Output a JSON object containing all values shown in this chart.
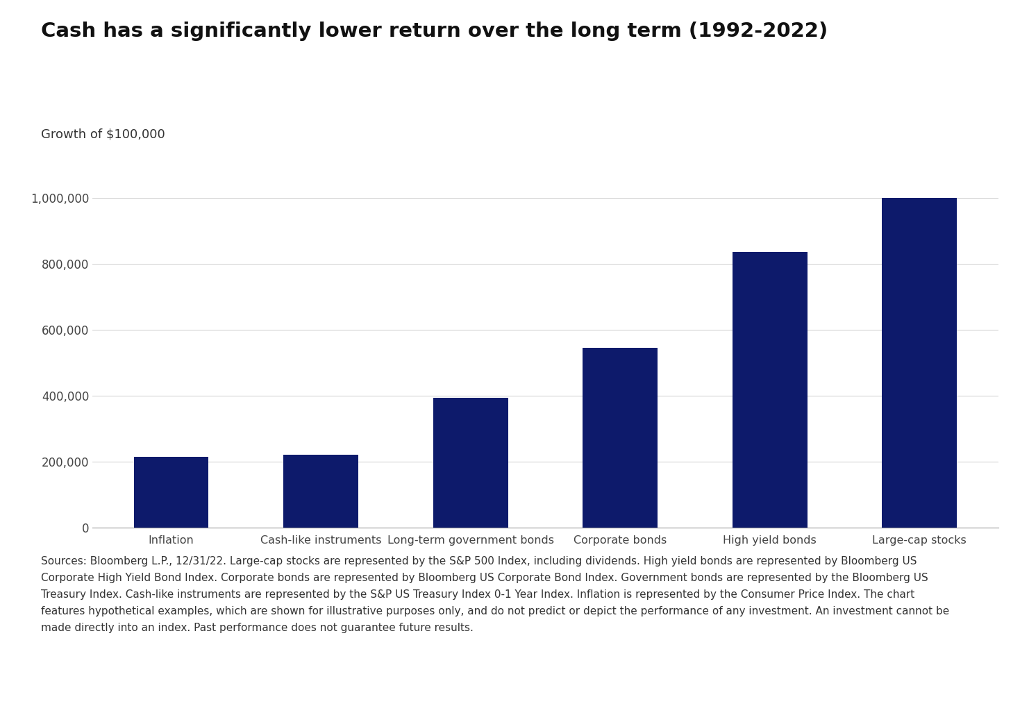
{
  "title": "Cash has a significantly lower return over the long term (1992-2022)",
  "ylabel": "Growth of $100,000",
  "categories": [
    "Inflation",
    "Cash-like instruments",
    "Long-term government bonds",
    "Corporate bonds",
    "High yield bonds",
    "Large-cap stocks"
  ],
  "values": [
    215000,
    220000,
    393000,
    545000,
    835000,
    1000000
  ],
  "bar_color": "#0d1a6b",
  "ylim": [
    0,
    1080000
  ],
  "yticks": [
    0,
    200000,
    400000,
    600000,
    800000,
    1000000
  ],
  "background_color": "#ffffff",
  "title_fontsize": 21,
  "ylabel_fontsize": 13,
  "tick_fontsize": 12,
  "xlabel_fontsize": 11.5,
  "footer_text": "Sources: Bloomberg L.P., 12/31/22. Large-cap stocks are represented by the S&P 500 Index, including dividends. High yield bonds are represented by Bloomberg US\nCorporate High Yield Bond Index. Corporate bonds are represented by Bloomberg US Corporate Bond Index. Government bonds are represented by the Bloomberg US\nTreasury Index. Cash-like instruments are represented by the S&P US Treasury Index 0-1 Year Index. Inflation is represented by the Consumer Price Index. The chart\nfeatures hypothetical examples, which are shown for illustrative purposes only, and do not predict or depict the performance of any investment. An investment cannot be\nmade directly into an index. Past performance does not guarantee future results.",
  "footer_fontsize": 11,
  "grid_color": "#cccccc",
  "bar_width": 0.5
}
